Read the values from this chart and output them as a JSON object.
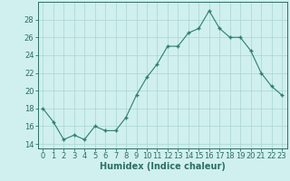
{
  "x": [
    0,
    1,
    2,
    3,
    4,
    5,
    6,
    7,
    8,
    9,
    10,
    11,
    12,
    13,
    14,
    15,
    16,
    17,
    18,
    19,
    20,
    21,
    22,
    23
  ],
  "y": [
    18,
    16.5,
    14.5,
    15,
    14.5,
    16,
    15.5,
    15.5,
    17,
    19.5,
    21.5,
    23,
    25,
    25,
    26.5,
    27,
    29,
    27,
    26,
    26,
    24.5,
    22,
    20.5,
    19.5
  ],
  "line_color": "#2e7d6e",
  "marker_color": "#2e7d6e",
  "bg_color": "#cff0ee",
  "grid_color_major": "#aad4d0",
  "xlabel": "Humidex (Indice chaleur)",
  "ylabel": "",
  "xlim": [
    -0.5,
    23.5
  ],
  "ylim": [
    13.5,
    30.0
  ],
  "yticks": [
    14,
    16,
    18,
    20,
    22,
    24,
    26,
    28
  ],
  "xticks": [
    0,
    1,
    2,
    3,
    4,
    5,
    6,
    7,
    8,
    9,
    10,
    11,
    12,
    13,
    14,
    15,
    16,
    17,
    18,
    19,
    20,
    21,
    22,
    23
  ],
  "font_color": "#2e6e64",
  "xlabel_fontsize": 7.0,
  "tick_fontsize": 6.0
}
